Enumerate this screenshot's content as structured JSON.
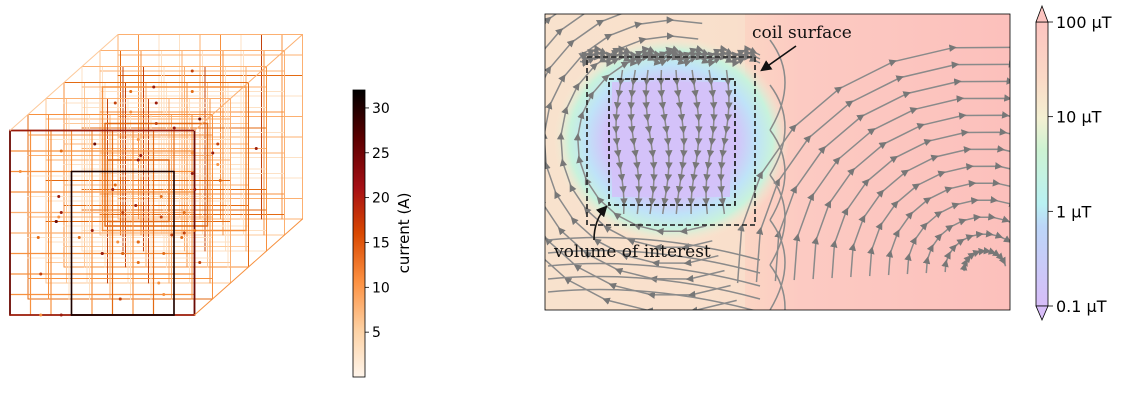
{
  "chart_data": [
    {
      "type": "other",
      "description_kind": "3d-coil-wireframe",
      "colorbar": {
        "label": "current (A)",
        "ticks": [
          5,
          10,
          15,
          20,
          25,
          30
        ],
        "range": [
          0,
          32
        ],
        "colormap": [
          "#fff5eb",
          "#fdd2a5",
          "#fd9243",
          "#e6550d",
          "#a63603",
          "#6b0000",
          "#000000"
        ]
      }
    },
    {
      "type": "heatmap",
      "description_kind": "magnetic-field-streamplot",
      "annotations": [
        "coil surface",
        "volume of interest"
      ],
      "colorbar": {
        "ticks": [
          "0.1 µT",
          "1 µT",
          "10 µT",
          "100 µT"
        ],
        "tick_values": [
          0.1,
          1,
          10,
          100
        ],
        "scale": "log",
        "range": [
          0.1,
          100
        ],
        "extend": "both",
        "colormap": [
          "#d7bdf8",
          "#b8d8f8",
          "#b9f1f2",
          "#c9f5d0",
          "#f4efcc",
          "#fbd8c4",
          "#fcc4c0"
        ]
      }
    }
  ]
}
